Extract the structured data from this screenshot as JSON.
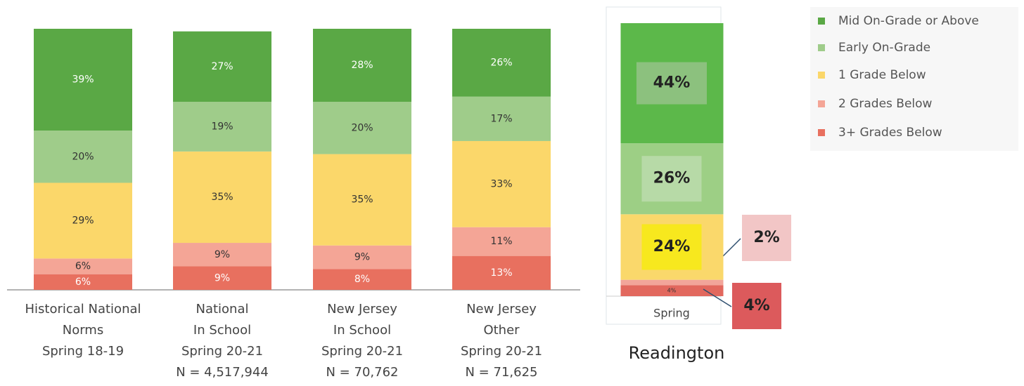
{
  "chart_data": [
    {
      "type": "bar",
      "stacked": true,
      "categories": [
        [
          "Historical National",
          "Norms",
          "Spring 18-19"
        ],
        [
          "National",
          "In School",
          "Spring 20-21",
          "N = 4,517,944"
        ],
        [
          "New Jersey",
          "In School",
          "Spring 20-21",
          "N = 70,762"
        ],
        [
          "New Jersey",
          "Other",
          "Spring 20-21",
          "N = 71,625"
        ]
      ],
      "ylim": [
        0,
        100
      ],
      "series": [
        {
          "name": "Mid On-Grade or Above",
          "color": "#5aa845",
          "label_color": "#ffffff",
          "values": [
            39,
            27,
            28,
            26
          ],
          "value_labels": [
            "39%",
            "27%",
            "28%",
            "26%"
          ]
        },
        {
          "name": "Early On-Grade",
          "color": "#9fcc8a",
          "label_color": "#333333",
          "values": [
            20,
            19,
            20,
            17
          ],
          "value_labels": [
            "20%",
            "19%",
            "20%",
            "17%"
          ]
        },
        {
          "name": "1 Grade Below",
          "color": "#fbd76a",
          "label_color": "#333333",
          "values": [
            29,
            35,
            35,
            33
          ],
          "value_labels": [
            "29%",
            "35%",
            "35%",
            "33%"
          ]
        },
        {
          "name": "2 Grades Below",
          "color": "#f4a596",
          "label_color": "#333333",
          "values": [
            6,
            9,
            9,
            11
          ],
          "value_labels": [
            "6%",
            "9%",
            "9%",
            "11%"
          ]
        },
        {
          "name": "3+ Grades Below",
          "color": "#e8705f",
          "label_color": "#ffffff",
          "values": [
            6,
            9,
            8,
            13
          ],
          "value_labels": [
            "6%",
            "9%",
            "8%",
            "13%"
          ]
        }
      ]
    },
    {
      "type": "bar",
      "stacked": true,
      "title": "Readington",
      "categories": [
        "Spring"
      ],
      "ylim": [
        0,
        100
      ],
      "series": [
        {
          "color": "#5cb84a",
          "values": [
            44
          ],
          "value_labels": [
            "44%"
          ]
        },
        {
          "color": "#9dcf85",
          "values": [
            26
          ],
          "value_labels": [
            "26%"
          ]
        },
        {
          "color": "#fad86b",
          "values": [
            24
          ],
          "value_labels": [
            "24%"
          ]
        },
        {
          "color": "#f2a59a",
          "values": [
            2
          ],
          "value_labels": [
            "2%"
          ]
        },
        {
          "color": "#e2685e",
          "values": [
            4
          ],
          "value_labels": [
            "4%"
          ]
        }
      ]
    }
  ]
}
